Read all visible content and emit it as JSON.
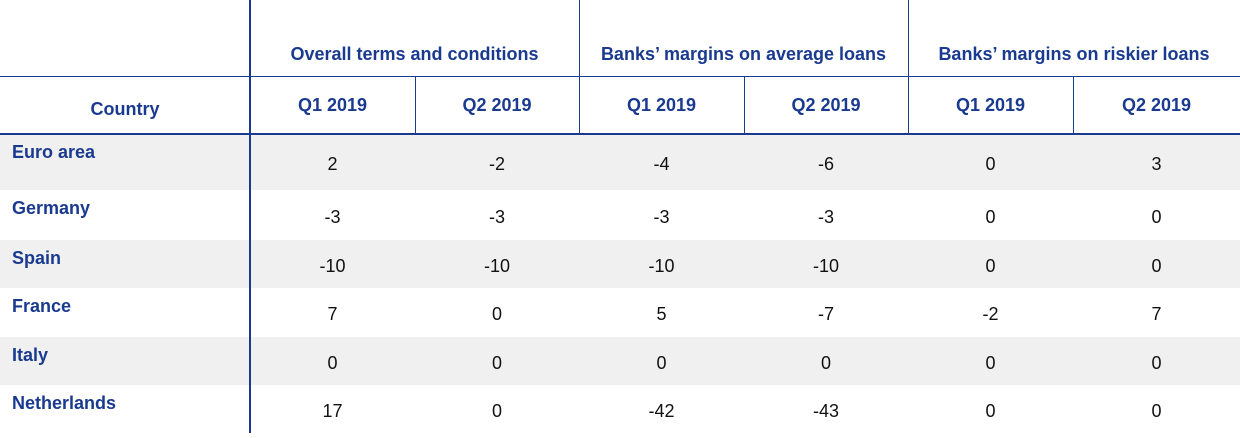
{
  "table": {
    "corner_label": "Country",
    "groups": [
      "Overall terms and conditions",
      "Banks’ margins on average loans",
      "Banks’ margins on riskier loans"
    ],
    "columns": [
      "Q1 2019",
      "Q2 2019",
      "Q1 2019",
      "Q2 2019",
      "Q1 2019",
      "Q2 2019"
    ],
    "rows": [
      {
        "label": "Euro area",
        "values": [
          2,
          -2,
          -4,
          -6,
          0,
          3
        ]
      },
      {
        "label": "Germany",
        "values": [
          -3,
          -3,
          -3,
          -3,
          0,
          0
        ]
      },
      {
        "label": "Spain",
        "values": [
          -10,
          -10,
          -10,
          -10,
          0,
          0
        ]
      },
      {
        "label": "France",
        "values": [
          7,
          0,
          5,
          -7,
          -2,
          7
        ]
      },
      {
        "label": "Italy",
        "values": [
          0,
          0,
          0,
          0,
          0,
          0
        ]
      },
      {
        "label": "Netherlands",
        "values": [
          17,
          0,
          -42,
          -43,
          0,
          0
        ]
      }
    ]
  }
}
